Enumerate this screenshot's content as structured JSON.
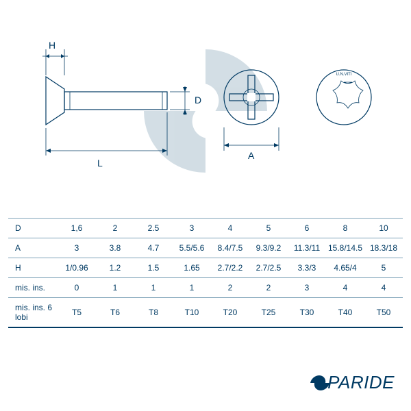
{
  "diagram": {
    "labels": {
      "H": "H",
      "L": "L",
      "D": "D",
      "A": "A"
    },
    "colors": {
      "line": "#003a63",
      "watermark_fill": "#c0d0da",
      "watermark_opacity": 0.7,
      "background": "#ffffff"
    },
    "stroke_widths": {
      "main": 1.2,
      "dim": 0.8
    },
    "head_top_text": "U.N.VITI"
  },
  "table": {
    "columns": [
      "1,6",
      "2",
      "2.5",
      "3",
      "4",
      "5",
      "6",
      "8",
      "10"
    ],
    "rows": [
      {
        "label": "D",
        "values": [
          "1,6",
          "2",
          "2.5",
          "3",
          "4",
          "5",
          "6",
          "8",
          "10"
        ]
      },
      {
        "label": "A",
        "values": [
          "3",
          "3.8",
          "4.7",
          "5.5/5.6",
          "8.4/7.5",
          "9.3/9.2",
          "11.3/11",
          "15.8/14.5",
          "18.3/18"
        ]
      },
      {
        "label": "H",
        "values": [
          "1/0.96",
          "1.2",
          "1.5",
          "1.65",
          "2.7/2.2",
          "2.7/2.5",
          "3.3/3",
          "4.65/4",
          "5"
        ]
      },
      {
        "label": "mis. ins.",
        "values": [
          "0",
          "1",
          "1",
          "1",
          "2",
          "2",
          "3",
          "4",
          "4"
        ]
      },
      {
        "label": "mis. ins. 6 lobi",
        "values": [
          "T5",
          "T6",
          "T8",
          "T10",
          "T20",
          "T25",
          "T30",
          "T40",
          "T50"
        ]
      }
    ],
    "cell_fontsize": 12,
    "header_color": "#003a63",
    "border_color": "#7fa3b8",
    "bottom_border_color": "#003a63"
  },
  "logo": {
    "text": "PARIDE",
    "color": "#003a63",
    "fontsize": 26
  }
}
